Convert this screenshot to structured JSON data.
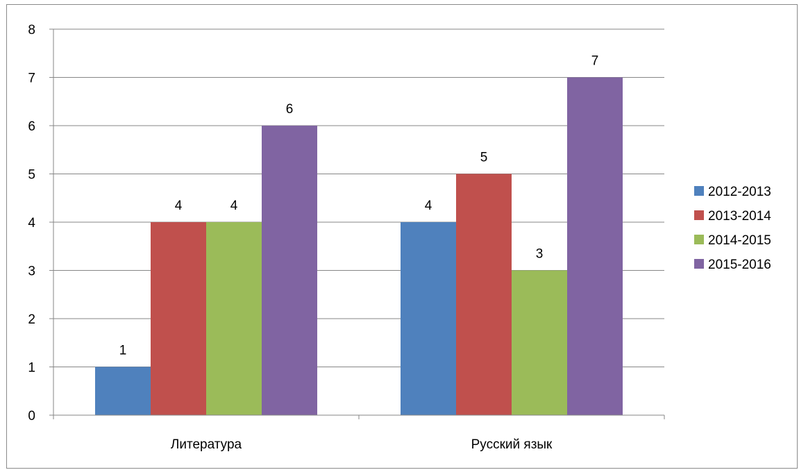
{
  "chart_data": {
    "type": "bar",
    "title": "",
    "xlabel": "",
    "ylabel": "",
    "categories": [
      "Литература",
      "Русский язык"
    ],
    "series": [
      {
        "name": "2012-2013",
        "values": [
          1,
          4
        ],
        "color": "#4F81BD"
      },
      {
        "name": "2013-2014",
        "values": [
          4,
          5
        ],
        "color": "#C0504D"
      },
      {
        "name": "2014-2015",
        "values": [
          4,
          3
        ],
        "color": "#9BBB59"
      },
      {
        "name": "2015-2016",
        "values": [
          6,
          7
        ],
        "color": "#8064A2"
      }
    ],
    "ylim": [
      0,
      8
    ],
    "yticks": [
      0,
      1,
      2,
      3,
      4,
      5,
      6,
      7,
      8
    ],
    "grid": true,
    "data_labels": true,
    "legend_position": "right"
  }
}
